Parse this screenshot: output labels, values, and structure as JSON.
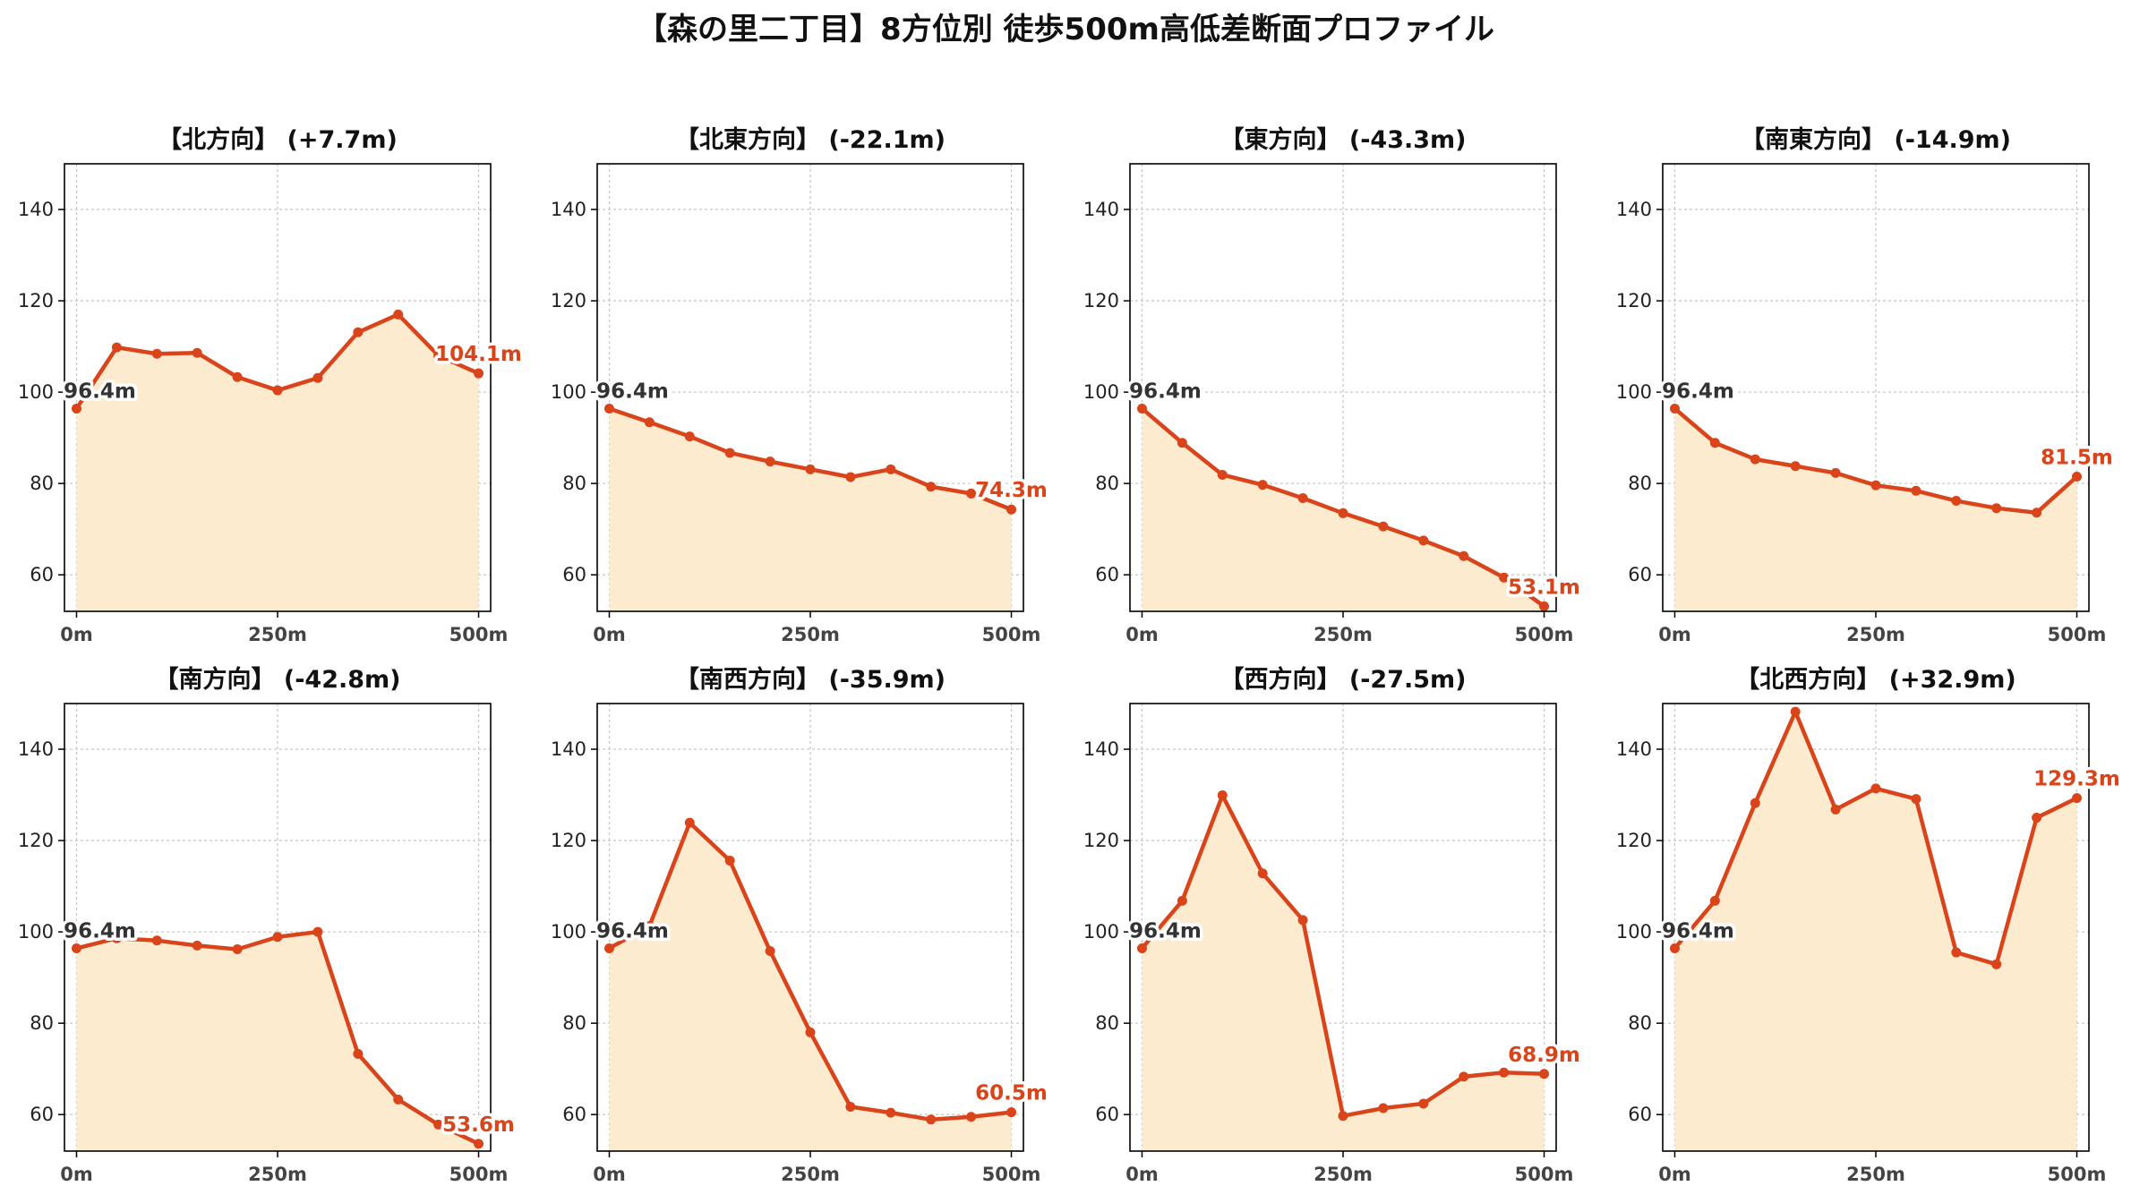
{
  "figure_title": "【森の里二丁目】8方位別 徒歩500m高低差断面プロファイル",
  "colors": {
    "line": "#d9441a",
    "fill": "#fdebd0",
    "start_label": "#333333",
    "end_label": "#d9441a",
    "grid": "#c8c8c8"
  },
  "chart_data": [
    {
      "type": "area",
      "title": "【北方向】 (+7.7m)",
      "x": [
        0,
        50,
        100,
        150,
        200,
        250,
        300,
        350,
        400,
        450,
        500
      ],
      "y": [
        96.4,
        109.8,
        108.4,
        108.6,
        103.3,
        100.4,
        103.1,
        113.1,
        117.0,
        108.0,
        104.1
      ],
      "xticks": [
        "0m",
        "250m",
        "500m"
      ],
      "yticks": [
        60,
        80,
        100,
        120,
        140
      ],
      "xlim": [
        -15,
        515
      ],
      "ylim": [
        52,
        150
      ],
      "start_label": "96.4m",
      "end_label": "104.1m",
      "grid": true,
      "xlabel": "",
      "ylabel": ""
    },
    {
      "type": "area",
      "title": "【北東方向】 (-22.1m)",
      "x": [
        0,
        50,
        100,
        150,
        200,
        250,
        300,
        350,
        400,
        450,
        500
      ],
      "y": [
        96.4,
        93.4,
        90.3,
        86.7,
        84.8,
        83.1,
        81.4,
        83.1,
        79.3,
        77.8,
        74.3
      ],
      "xticks": [
        "0m",
        "250m",
        "500m"
      ],
      "yticks": [
        60,
        80,
        100,
        120,
        140
      ],
      "xlim": [
        -15,
        515
      ],
      "ylim": [
        52,
        150
      ],
      "start_label": "96.4m",
      "end_label": "74.3m",
      "grid": true,
      "xlabel": "",
      "ylabel": ""
    },
    {
      "type": "area",
      "title": "【東方向】 (-43.3m)",
      "x": [
        0,
        50,
        100,
        150,
        200,
        250,
        300,
        350,
        400,
        450,
        500
      ],
      "y": [
        96.4,
        88.9,
        81.9,
        79.7,
        76.8,
        73.5,
        70.6,
        67.5,
        64.1,
        59.4,
        53.1
      ],
      "xticks": [
        "0m",
        "250m",
        "500m"
      ],
      "yticks": [
        60,
        80,
        100,
        120,
        140
      ],
      "xlim": [
        -15,
        515
      ],
      "ylim": [
        52,
        150
      ],
      "start_label": "96.4m",
      "end_label": "53.1m",
      "grid": true,
      "xlabel": "",
      "ylabel": ""
    },
    {
      "type": "area",
      "title": "【南東方向】 (-14.9m)",
      "x": [
        0,
        50,
        100,
        150,
        200,
        250,
        300,
        350,
        400,
        450,
        500
      ],
      "y": [
        96.4,
        88.9,
        85.3,
        83.8,
        82.3,
        79.6,
        78.4,
        76.2,
        74.6,
        73.6,
        81.5
      ],
      "xticks": [
        "0m",
        "250m",
        "500m"
      ],
      "yticks": [
        60,
        80,
        100,
        120,
        140
      ],
      "xlim": [
        -15,
        515
      ],
      "ylim": [
        52,
        150
      ],
      "start_label": "96.4m",
      "end_label": "81.5m",
      "grid": true,
      "xlabel": "",
      "ylabel": ""
    },
    {
      "type": "area",
      "title": "【南方向】 (-42.8m)",
      "x": [
        0,
        50,
        100,
        150,
        200,
        250,
        300,
        350,
        400,
        450,
        500
      ],
      "y": [
        96.4,
        98.6,
        98.1,
        97.0,
        96.2,
        98.9,
        100.0,
        73.3,
        63.3,
        57.8,
        53.6
      ],
      "xticks": [
        "0m",
        "250m",
        "500m"
      ],
      "yticks": [
        60,
        80,
        100,
        120,
        140
      ],
      "xlim": [
        -15,
        515
      ],
      "ylim": [
        52,
        150
      ],
      "start_label": "96.4m",
      "end_label": "53.6m",
      "grid": true,
      "xlabel": "",
      "ylabel": ""
    },
    {
      "type": "area",
      "title": "【南西方向】 (-35.9m)",
      "x": [
        0,
        50,
        100,
        150,
        200,
        250,
        300,
        350,
        400,
        450,
        500
      ],
      "y": [
        96.4,
        101.3,
        123.9,
        115.6,
        95.8,
        78.0,
        61.7,
        60.4,
        58.9,
        59.5,
        60.5
      ],
      "xticks": [
        "0m",
        "250m",
        "500m"
      ],
      "yticks": [
        60,
        80,
        100,
        120,
        140
      ],
      "xlim": [
        -15,
        515
      ],
      "ylim": [
        52,
        150
      ],
      "start_label": "96.4m",
      "end_label": "60.5m",
      "grid": true,
      "xlabel": "",
      "ylabel": ""
    },
    {
      "type": "area",
      "title": "【西方向】 (-27.5m)",
      "x": [
        0,
        50,
        100,
        150,
        200,
        250,
        300,
        350,
        400,
        450,
        500
      ],
      "y": [
        96.4,
        106.8,
        129.9,
        112.8,
        102.6,
        59.7,
        61.4,
        62.4,
        68.3,
        69.2,
        68.9
      ],
      "xticks": [
        "0m",
        "250m",
        "500m"
      ],
      "yticks": [
        60,
        80,
        100,
        120,
        140
      ],
      "xlim": [
        -15,
        515
      ],
      "ylim": [
        52,
        150
      ],
      "start_label": "96.4m",
      "end_label": "68.9m",
      "grid": true,
      "xlabel": "",
      "ylabel": ""
    },
    {
      "type": "area",
      "title": "【北西方向】 (+32.9m)",
      "x": [
        0,
        50,
        100,
        150,
        200,
        250,
        300,
        350,
        400,
        450,
        500
      ],
      "y": [
        96.4,
        106.8,
        128.2,
        148.2,
        126.8,
        131.4,
        129.1,
        95.5,
        92.9,
        125.0,
        129.3
      ],
      "xticks": [
        "0m",
        "250m",
        "500m"
      ],
      "yticks": [
        60,
        80,
        100,
        120,
        140
      ],
      "xlim": [
        -15,
        515
      ],
      "ylim": [
        52,
        150
      ],
      "start_label": "96.4m",
      "end_label": "129.3m",
      "grid": true,
      "xlabel": "",
      "ylabel": ""
    }
  ]
}
